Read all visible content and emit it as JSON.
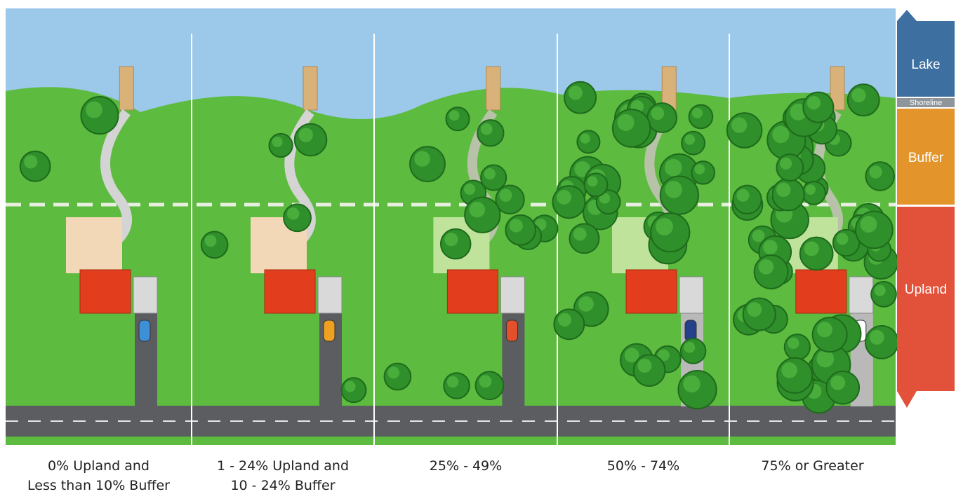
{
  "zones": [
    {
      "label": "Lake"
    },
    {
      "label": "Shoreline"
    },
    {
      "label": "Buffer"
    },
    {
      "label": "Upland"
    }
  ],
  "panels": [
    {
      "caption": [
        "0% Upland and",
        "Less than 10% Buffer"
      ]
    },
    {
      "caption": [
        "1 - 24% Upland and",
        "10 - 24% Buffer"
      ]
    },
    {
      "caption": [
        "25% - 49%"
      ]
    },
    {
      "caption": [
        "50% - 74%"
      ]
    },
    {
      "caption": [
        "75% or Greater"
      ]
    }
  ]
}
